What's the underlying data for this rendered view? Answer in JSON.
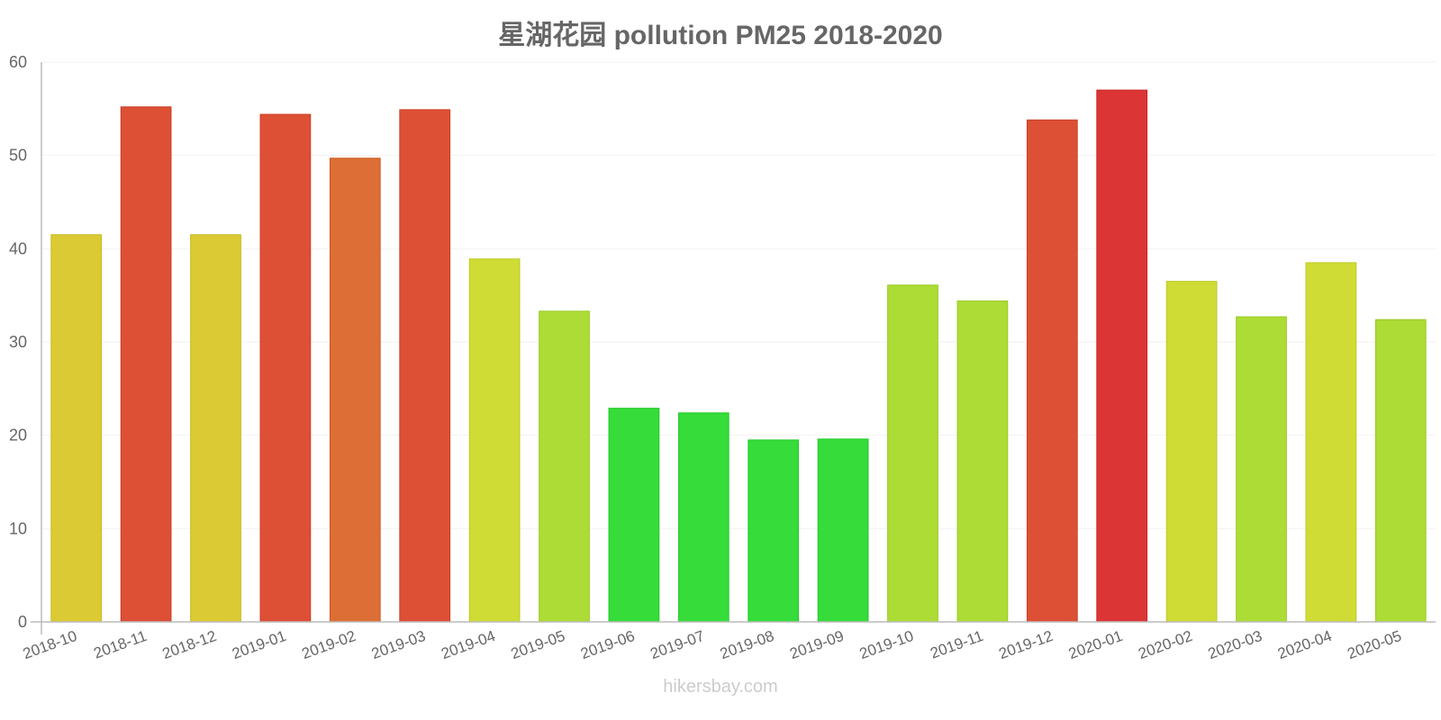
{
  "title": "星湖花园 pollution PM25 2018-2020",
  "watermark": "hikersbay.com",
  "chart_data": {
    "type": "bar",
    "title": "星湖花园 pollution PM25 2018-2020",
    "xlabel": "",
    "ylabel": "",
    "ylim": [
      0,
      60
    ],
    "yticks": [
      0,
      10,
      20,
      30,
      40,
      50,
      60
    ],
    "grid": true,
    "legend": null,
    "categories": [
      "2018-10",
      "2018-11",
      "2018-12",
      "2019-01",
      "2019-02",
      "2019-03",
      "2019-04",
      "2019-05",
      "2019-06",
      "2019-07",
      "2019-08",
      "2019-09",
      "2019-10",
      "2019-11",
      "2019-12",
      "2020-01",
      "2020-02",
      "2020-03",
      "2020-04",
      "2020-05"
    ],
    "values": [
      41.5,
      55.2,
      41.5,
      54.4,
      49.7,
      54.9,
      38.9,
      33.3,
      22.9,
      22.4,
      19.5,
      19.6,
      36.1,
      34.4,
      53.8,
      57.0,
      36.5,
      32.7,
      38.5,
      32.4
    ],
    "colors": [
      "#dbca33",
      "#dd5035",
      "#dbca33",
      "#dd5035",
      "#dd6e35",
      "#dd5035",
      "#cfdc35",
      "#acdc35",
      "#35dc3a",
      "#35dc3a",
      "#35dc3a",
      "#35dc3a",
      "#acdc35",
      "#acdc35",
      "#dd5035",
      "#dc3535",
      "#cfdc35",
      "#acdc35",
      "#cfdc35",
      "#acdc35"
    ]
  }
}
